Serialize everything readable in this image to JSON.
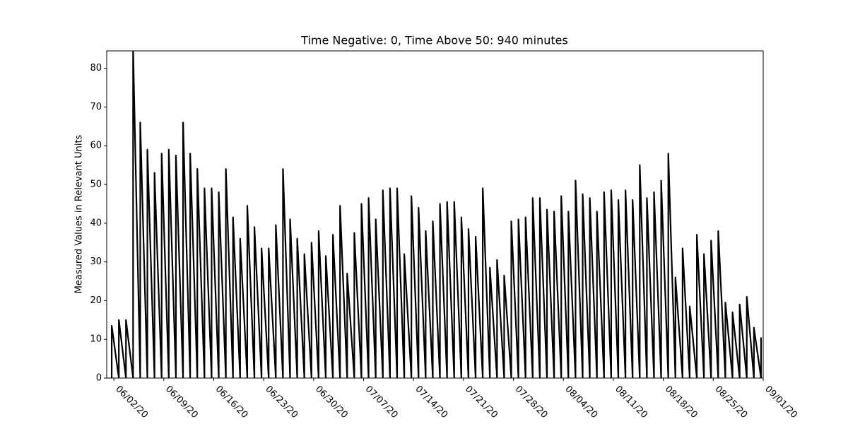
{
  "chart_data": {
    "type": "line",
    "title": "Time Negative: 0, Time Above 50: 940 minutes",
    "y_label": "Measured Values in Relevant Units",
    "xlim": [
      "06/01/20",
      "09/01/20"
    ],
    "xticks": [
      "06/02/20",
      "06/09/20",
      "06/16/20",
      "06/23/20",
      "06/30/20",
      "07/07/20",
      "07/14/20",
      "07/21/20",
      "07/28/20",
      "08/04/20",
      "08/11/20",
      "08/18/20",
      "08/25/20",
      "09/01/20"
    ],
    "ylim": [
      0,
      84.5
    ],
    "yticks": [
      0,
      10,
      20,
      30,
      40,
      50,
      60,
      70,
      80
    ],
    "x": [
      "06/01/20",
      "06/01/20",
      "06/02/20",
      "06/02/20",
      "06/03/20",
      "06/03/20",
      "06/04/20",
      "06/04/20",
      "06/05/20",
      "06/05/20",
      "06/06/20",
      "06/06/20",
      "06/07/20",
      "06/07/20",
      "06/08/20",
      "06/08/20",
      "06/09/20",
      "06/09/20",
      "06/10/20",
      "06/10/20",
      "06/11/20",
      "06/11/20",
      "06/12/20",
      "06/12/20",
      "06/13/20",
      "06/13/20",
      "06/14/20",
      "06/14/20",
      "06/15/20",
      "06/15/20",
      "06/16/20",
      "06/16/20",
      "06/17/20",
      "06/17/20",
      "06/18/20",
      "06/18/20",
      "06/19/20",
      "06/19/20",
      "06/20/20",
      "06/20/20",
      "06/21/20",
      "06/21/20",
      "06/22/20",
      "06/22/20",
      "06/23/20",
      "06/23/20",
      "06/24/20",
      "06/24/20",
      "06/25/20",
      "06/25/20",
      "06/26/20",
      "06/26/20",
      "06/27/20",
      "06/27/20",
      "06/28/20",
      "06/28/20",
      "06/29/20",
      "06/29/20",
      "06/30/20",
      "06/30/20",
      "07/01/20",
      "07/01/20",
      "07/02/20",
      "07/02/20",
      "07/03/20",
      "07/03/20",
      "07/04/20",
      "07/04/20",
      "07/05/20",
      "07/05/20",
      "07/06/20",
      "07/06/20",
      "07/07/20",
      "07/07/20",
      "07/08/20",
      "07/08/20",
      "07/09/20",
      "07/09/20",
      "07/10/20",
      "07/10/20",
      "07/11/20",
      "07/11/20",
      "07/12/20",
      "07/12/20",
      "07/13/20",
      "07/13/20",
      "07/14/20",
      "07/14/20",
      "07/15/20",
      "07/15/20",
      "07/16/20",
      "07/16/20",
      "07/17/20",
      "07/17/20",
      "07/18/20",
      "07/18/20",
      "07/19/20",
      "07/19/20",
      "07/20/20",
      "07/20/20",
      "07/21/20",
      "07/21/20",
      "07/22/20",
      "07/22/20",
      "07/23/20",
      "07/23/20",
      "07/24/20",
      "07/24/20",
      "07/25/20",
      "07/25/20",
      "07/26/20",
      "07/26/20",
      "07/27/20",
      "07/27/20",
      "07/28/20",
      "07/28/20",
      "07/29/20",
      "07/29/20",
      "07/30/20",
      "07/30/20",
      "07/31/20",
      "07/31/20",
      "08/01/20",
      "08/01/20",
      "08/02/20",
      "08/02/20",
      "08/03/20",
      "08/03/20",
      "08/04/20",
      "08/04/20",
      "08/05/20",
      "08/05/20",
      "08/06/20",
      "08/06/20",
      "08/07/20",
      "08/07/20",
      "08/08/20",
      "08/08/20",
      "08/09/20",
      "08/09/20",
      "08/10/20",
      "08/10/20",
      "08/11/20",
      "08/11/20",
      "08/12/20",
      "08/12/20",
      "08/13/20",
      "08/13/20",
      "08/14/20",
      "08/14/20",
      "08/15/20",
      "08/15/20",
      "08/16/20",
      "08/16/20",
      "08/17/20",
      "08/17/20",
      "08/18/20",
      "08/18/20",
      "08/19/20",
      "08/19/20",
      "08/20/20",
      "08/20/20",
      "08/21/20",
      "08/21/20",
      "08/22/20",
      "08/22/20",
      "08/23/20",
      "08/23/20",
      "08/24/20",
      "08/24/20",
      "08/25/20",
      "08/25/20",
      "08/26/20",
      "08/26/20",
      "08/27/20",
      "08/27/20",
      "08/28/20",
      "08/28/20",
      "08/29/20",
      "08/29/20",
      "08/30/20",
      "08/30/20",
      "08/31/20",
      "08/31/20"
    ],
    "series": [
      {
        "color": "#000000",
        "values": [
          0,
          13.5,
          0,
          15,
          0,
          15,
          0,
          85,
          0,
          66,
          0,
          59,
          0,
          53,
          0,
          58,
          0,
          59,
          0,
          57.5,
          0,
          66,
          0,
          58,
          0,
          54,
          0,
          49,
          0,
          49,
          0,
          48,
          0,
          54,
          0,
          41.5,
          0,
          36,
          0,
          44.5,
          0,
          39,
          0,
          33.5,
          0,
          33.5,
          0,
          39.5,
          0,
          54,
          0,
          41,
          0,
          36,
          0,
          32,
          0,
          35,
          0,
          38,
          0,
          31.5,
          0,
          37,
          0,
          44.5,
          0,
          27,
          0,
          37.5,
          0,
          45,
          0,
          46.5,
          0,
          41,
          0,
          48.5,
          0,
          49,
          0,
          49,
          0,
          32,
          0,
          47,
          0,
          44,
          0,
          38,
          0,
          40.5,
          0,
          45,
          0,
          45.5,
          0,
          45.5,
          0,
          41.5,
          0,
          38.5,
          0,
          36.5,
          0,
          49,
          0,
          28.5,
          0,
          30.5,
          0,
          26.5,
          0,
          40.5,
          0,
          41,
          0,
          41.5,
          0,
          46.5,
          0,
          46.5,
          0,
          43.5,
          0,
          43,
          0,
          47,
          0,
          43,
          0,
          51,
          0,
          47.5,
          0,
          46.5,
          0,
          43,
          0,
          48,
          0,
          48.5,
          0,
          46,
          0,
          48.5,
          0,
          46,
          0,
          55,
          0,
          46.5,
          0,
          48,
          0,
          51,
          0,
          58,
          0,
          26,
          0,
          33.5,
          0,
          18.5,
          0,
          37,
          0,
          32,
          0,
          35.5,
          0,
          38,
          0,
          19.5,
          0,
          17,
          0,
          19,
          0,
          21,
          0,
          13,
          0,
          10.5
        ]
      }
    ]
  }
}
